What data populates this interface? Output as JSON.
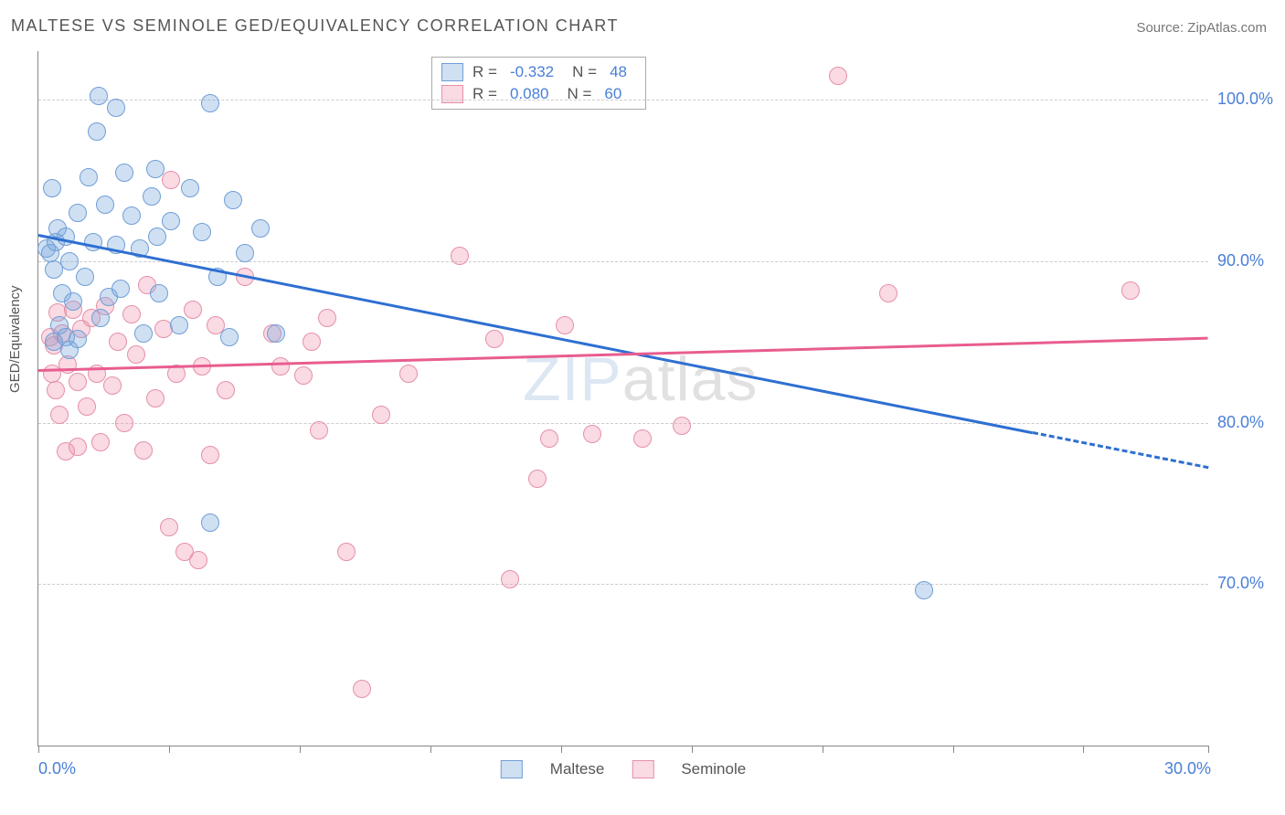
{
  "title": "MALTESE VS SEMINOLE GED/EQUIVALENCY CORRELATION CHART",
  "source_label": "Source: ZipAtlas.com",
  "ylabel": "GED/Equivalency",
  "watermark": {
    "zip": "ZIP",
    "atlas": "atlas"
  },
  "chart": {
    "type": "scatter",
    "background_color": "#ffffff",
    "grid_color": "#cccccc",
    "axis_color": "#888888",
    "tick_label_color": "#4a7fd6",
    "xlim": [
      0,
      30
    ],
    "ylim": [
      60,
      103
    ],
    "y_gridlines": [
      70,
      80,
      90,
      100
    ],
    "y_tick_labels": [
      "70.0%",
      "80.0%",
      "90.0%",
      "100.0%"
    ],
    "x_ticks": [
      0,
      3.35,
      6.7,
      10.05,
      13.4,
      16.75,
      20.1,
      23.45,
      26.8,
      30
    ],
    "x_tick_labels": {
      "0": "0.0%",
      "30": "30.0%"
    },
    "marker_radius": 9,
    "marker_border_width": 1.5,
    "series": [
      {
        "name": "Maltese",
        "fill_color": "rgba(120,165,220,0.35)",
        "border_color": "#6f9ed6",
        "line_color": "#2e6fd1",
        "R": "-0.332",
        "N": "48",
        "trend": {
          "x1": 0,
          "y1": 91.7,
          "x2": 30,
          "y2": 77.3,
          "solid_until_x": 25.5
        },
        "points": [
          [
            0.2,
            90.8
          ],
          [
            0.3,
            90.5
          ],
          [
            0.35,
            94.5
          ],
          [
            0.4,
            89.5
          ],
          [
            0.4,
            85.0
          ],
          [
            0.45,
            91.2
          ],
          [
            0.5,
            92.0
          ],
          [
            0.55,
            86.0
          ],
          [
            0.6,
            88.0
          ],
          [
            0.7,
            91.5
          ],
          [
            0.7,
            85.3
          ],
          [
            0.8,
            90.0
          ],
          [
            0.8,
            84.5
          ],
          [
            0.9,
            87.5
          ],
          [
            1.0,
            93.0
          ],
          [
            1.0,
            85.2
          ],
          [
            1.2,
            89.0
          ],
          [
            1.3,
            95.2
          ],
          [
            1.4,
            91.2
          ],
          [
            1.5,
            98.0
          ],
          [
            1.55,
            100.2
          ],
          [
            1.6,
            86.5
          ],
          [
            1.7,
            93.5
          ],
          [
            1.8,
            87.8
          ],
          [
            2.0,
            91.0
          ],
          [
            2.0,
            99.5
          ],
          [
            2.1,
            88.3
          ],
          [
            2.2,
            95.5
          ],
          [
            2.4,
            92.8
          ],
          [
            2.6,
            90.8
          ],
          [
            2.7,
            85.5
          ],
          [
            2.9,
            94.0
          ],
          [
            3.0,
            95.7
          ],
          [
            3.05,
            91.5
          ],
          [
            3.1,
            88.0
          ],
          [
            3.4,
            92.5
          ],
          [
            3.6,
            86.0
          ],
          [
            3.9,
            94.5
          ],
          [
            4.2,
            91.8
          ],
          [
            4.4,
            99.8
          ],
          [
            4.6,
            89.0
          ],
          [
            4.9,
            85.3
          ],
          [
            4.4,
            73.8
          ],
          [
            5.0,
            93.8
          ],
          [
            5.3,
            90.5
          ],
          [
            5.7,
            92.0
          ],
          [
            6.1,
            85.5
          ],
          [
            22.7,
            69.6
          ]
        ]
      },
      {
        "name": "Seminole",
        "fill_color": "rgba(240,150,175,0.35)",
        "border_color": "#e590a8",
        "line_color": "#e85d8f",
        "R": "0.080",
        "N": "60",
        "trend": {
          "x1": 0,
          "y1": 83.3,
          "x2": 30,
          "y2": 85.3,
          "solid_until_x": 30
        },
        "points": [
          [
            0.3,
            85.3
          ],
          [
            0.35,
            83.0
          ],
          [
            0.4,
            84.8
          ],
          [
            0.45,
            82.0
          ],
          [
            0.5,
            86.8
          ],
          [
            0.55,
            80.5
          ],
          [
            0.6,
            85.5
          ],
          [
            0.7,
            78.2
          ],
          [
            0.75,
            83.6
          ],
          [
            0.9,
            87.0
          ],
          [
            1.0,
            82.5
          ],
          [
            1.0,
            78.5
          ],
          [
            1.1,
            85.8
          ],
          [
            1.25,
            81.0
          ],
          [
            1.35,
            86.5
          ],
          [
            1.5,
            83.0
          ],
          [
            1.6,
            78.8
          ],
          [
            1.7,
            87.2
          ],
          [
            1.9,
            82.3
          ],
          [
            2.05,
            85.0
          ],
          [
            2.2,
            80.0
          ],
          [
            2.4,
            86.7
          ],
          [
            2.5,
            84.2
          ],
          [
            2.7,
            78.3
          ],
          [
            2.8,
            88.5
          ],
          [
            3.0,
            81.5
          ],
          [
            3.2,
            85.8
          ],
          [
            3.35,
            73.5
          ],
          [
            3.4,
            95.0
          ],
          [
            3.55,
            83.0
          ],
          [
            3.75,
            72.0
          ],
          [
            3.95,
            87.0
          ],
          [
            4.1,
            71.5
          ],
          [
            4.2,
            83.5
          ],
          [
            4.4,
            78.0
          ],
          [
            4.55,
            86.0
          ],
          [
            4.8,
            82.0
          ],
          [
            5.3,
            89.0
          ],
          [
            6.0,
            85.5
          ],
          [
            6.2,
            83.5
          ],
          [
            6.8,
            82.9
          ],
          [
            7.0,
            85.0
          ],
          [
            7.2,
            79.5
          ],
          [
            7.4,
            86.5
          ],
          [
            7.9,
            72.0
          ],
          [
            8.3,
            63.5
          ],
          [
            8.8,
            80.5
          ],
          [
            9.5,
            83.0
          ],
          [
            10.8,
            90.3
          ],
          [
            11.7,
            85.2
          ],
          [
            12.1,
            70.3
          ],
          [
            12.8,
            76.5
          ],
          [
            13.1,
            79.0
          ],
          [
            13.5,
            86.0
          ],
          [
            14.2,
            79.3
          ],
          [
            15.5,
            79.0
          ],
          [
            16.5,
            79.8
          ],
          [
            20.5,
            101.5
          ],
          [
            21.8,
            88.0
          ],
          [
            28.0,
            88.2
          ]
        ]
      }
    ]
  },
  "legend_top": {
    "rows": [
      {
        "swatch_fill": "rgba(120,165,220,0.35)",
        "swatch_border": "#6f9ed6",
        "r_label": "R =",
        "r_val": "-0.332",
        "n_label": "N =",
        "n_val": "48"
      },
      {
        "swatch_fill": "rgba(240,150,175,0.35)",
        "swatch_border": "#e590a8",
        "r_label": "R =",
        "r_val": "0.080",
        "n_label": "N =",
        "n_val": "60"
      }
    ]
  },
  "legend_bottom": {
    "items": [
      {
        "swatch_fill": "rgba(120,165,220,0.35)",
        "swatch_border": "#6f9ed6",
        "label": "Maltese"
      },
      {
        "swatch_fill": "rgba(240,150,175,0.35)",
        "swatch_border": "#e590a8",
        "label": "Seminole"
      }
    ]
  }
}
